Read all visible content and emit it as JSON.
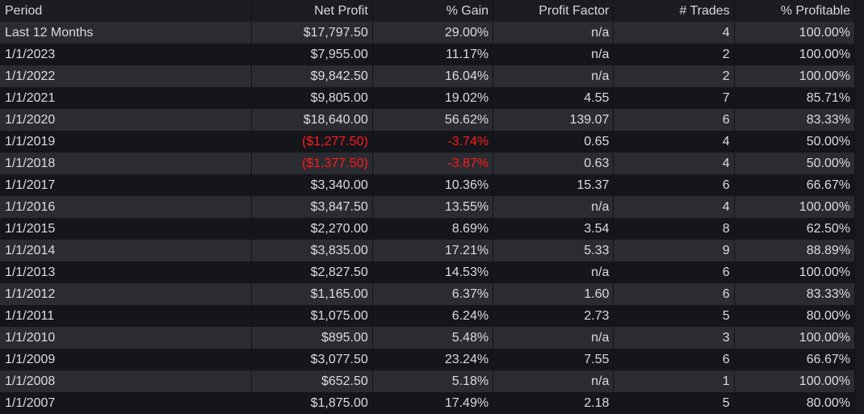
{
  "table": {
    "columns": [
      "Period",
      "Net Profit",
      "% Gain",
      "Profit Factor",
      "# Trades",
      "% Profitable"
    ],
    "rows": [
      {
        "period": "Last 12 Months",
        "net_profit": "$17,797.50",
        "gain": "29.00%",
        "profit_factor": "n/a",
        "trades": "4",
        "profitable": "100.00%"
      },
      {
        "period": "1/1/2023",
        "net_profit": "$7,955.00",
        "gain": "11.17%",
        "profit_factor": "n/a",
        "trades": "2",
        "profitable": "100.00%"
      },
      {
        "period": "1/1/2022",
        "net_profit": "$9,842.50",
        "gain": "16.04%",
        "profit_factor": "n/a",
        "trades": "2",
        "profitable": "100.00%"
      },
      {
        "period": "1/1/2021",
        "net_profit": "$9,805.00",
        "gain": "19.02%",
        "profit_factor": "4.55",
        "trades": "7",
        "profitable": "85.71%"
      },
      {
        "period": "1/1/2020",
        "net_profit": "$18,640.00",
        "gain": "56.62%",
        "profit_factor": "139.07",
        "trades": "6",
        "profitable": "83.33%"
      },
      {
        "period": "1/1/2019",
        "net_profit": "($1,277.50)",
        "gain": "-3.74%",
        "profit_factor": "0.65",
        "trades": "4",
        "profitable": "50.00%",
        "negative": true
      },
      {
        "period": "1/1/2018",
        "net_profit": "($1,377.50)",
        "gain": "-3.87%",
        "profit_factor": "0.63",
        "trades": "4",
        "profitable": "50.00%",
        "negative": true
      },
      {
        "period": "1/1/2017",
        "net_profit": "$3,340.00",
        "gain": "10.36%",
        "profit_factor": "15.37",
        "trades": "6",
        "profitable": "66.67%"
      },
      {
        "period": "1/1/2016",
        "net_profit": "$3,847.50",
        "gain": "13.55%",
        "profit_factor": "n/a",
        "trades": "4",
        "profitable": "100.00%"
      },
      {
        "period": "1/1/2015",
        "net_profit": "$2,270.00",
        "gain": "8.69%",
        "profit_factor": "3.54",
        "trades": "8",
        "profitable": "62.50%"
      },
      {
        "period": "1/1/2014",
        "net_profit": "$3,835.00",
        "gain": "17.21%",
        "profit_factor": "5.33",
        "trades": "9",
        "profitable": "88.89%"
      },
      {
        "period": "1/1/2013",
        "net_profit": "$2,827.50",
        "gain": "14.53%",
        "profit_factor": "n/a",
        "trades": "6",
        "profitable": "100.00%"
      },
      {
        "period": "1/1/2012",
        "net_profit": "$1,165.00",
        "gain": "6.37%",
        "profit_factor": "1.60",
        "trades": "6",
        "profitable": "83.33%"
      },
      {
        "period": "1/1/2011",
        "net_profit": "$1,075.00",
        "gain": "6.24%",
        "profit_factor": "2.73",
        "trades": "5",
        "profitable": "80.00%"
      },
      {
        "period": "1/1/2010",
        "net_profit": "$895.00",
        "gain": "5.48%",
        "profit_factor": "n/a",
        "trades": "3",
        "profitable": "100.00%"
      },
      {
        "period": "1/1/2009",
        "net_profit": "$3,077.50",
        "gain": "23.24%",
        "profit_factor": "7.55",
        "trades": "6",
        "profitable": "66.67%"
      },
      {
        "period": "1/1/2008",
        "net_profit": "$652.50",
        "gain": "5.18%",
        "profit_factor": "n/a",
        "trades": "1",
        "profitable": "100.00%"
      },
      {
        "period": "1/1/2007",
        "net_profit": "$1,875.00",
        "gain": "17.49%",
        "profit_factor": "2.18",
        "trades": "5",
        "profitable": "80.00%"
      }
    ]
  },
  "colors": {
    "negative": "#ff1a1a",
    "row_odd": "#2b2c31",
    "row_even": "#15161b",
    "text": "#dcdcdc"
  }
}
